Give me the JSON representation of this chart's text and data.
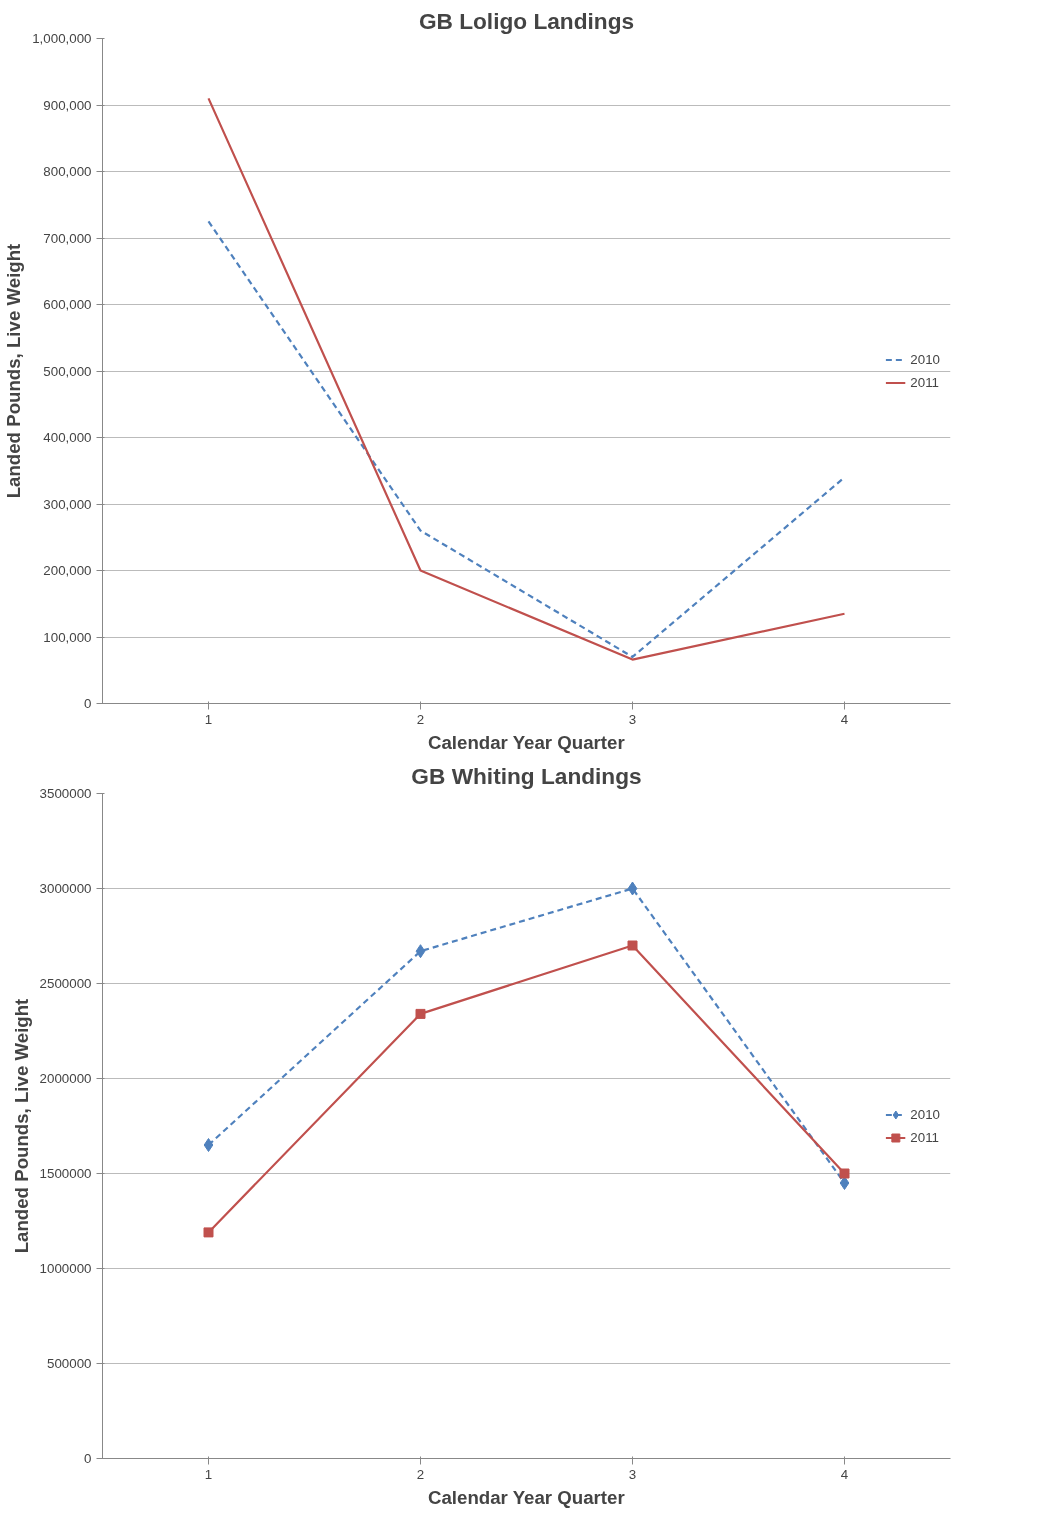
{
  "chart_data": [
    {
      "type": "line",
      "title": "GB Loligo Landings",
      "xlabel": "Calendar Year Quarter",
      "ylabel": "Landed Pounds, Live Weight",
      "categories": [
        "1",
        "2",
        "3",
        "4"
      ],
      "series": [
        {
          "name": "2010",
          "color": "#4f81bd",
          "line_style": "dashed",
          "marker": "none",
          "values": [
            725000,
            260000,
            70000,
            340000
          ]
        },
        {
          "name": "2011",
          "color": "#c0504d",
          "line_style": "solid",
          "marker": "none",
          "values": [
            910000,
            200000,
            66000,
            135000
          ]
        }
      ],
      "ylim": [
        0,
        1000000
      ],
      "yticks": [
        {
          "value": 0,
          "label": "0"
        },
        {
          "value": 100000,
          "label": "100,000"
        },
        {
          "value": 200000,
          "label": "200,000"
        },
        {
          "value": 300000,
          "label": "300,000"
        },
        {
          "value": 400000,
          "label": "400,000"
        },
        {
          "value": 500000,
          "label": "500,000"
        },
        {
          "value": 600000,
          "label": "600,000"
        },
        {
          "value": 700000,
          "label": "700,000"
        },
        {
          "value": 800000,
          "label": "800,000"
        },
        {
          "value": 900000,
          "label": "900,000"
        },
        {
          "value": 1000000,
          "label": "1,000,000"
        }
      ],
      "grid": "y",
      "legend": "right"
    },
    {
      "type": "line",
      "title": "GB Whiting Landings",
      "xlabel": "Calendar Year Quarter",
      "ylabel": "Landed Pounds, Live Weight",
      "categories": [
        "1",
        "2",
        "3",
        "4"
      ],
      "series": [
        {
          "name": "2010",
          "color": "#4f81bd",
          "line_style": "dashed",
          "marker": "diamond",
          "values": [
            1650000,
            2670000,
            3000000,
            1450000
          ]
        },
        {
          "name": "2011",
          "color": "#c0504d",
          "line_style": "solid",
          "marker": "square",
          "values": [
            1190000,
            2340000,
            2700000,
            1500000
          ]
        }
      ],
      "ylim": [
        0,
        3500000
      ],
      "yticks": [
        0,
        500000,
        1000000,
        1500000,
        2000000,
        2500000,
        3000000,
        3500000
      ],
      "grid": "y",
      "legend": "right"
    }
  ]
}
